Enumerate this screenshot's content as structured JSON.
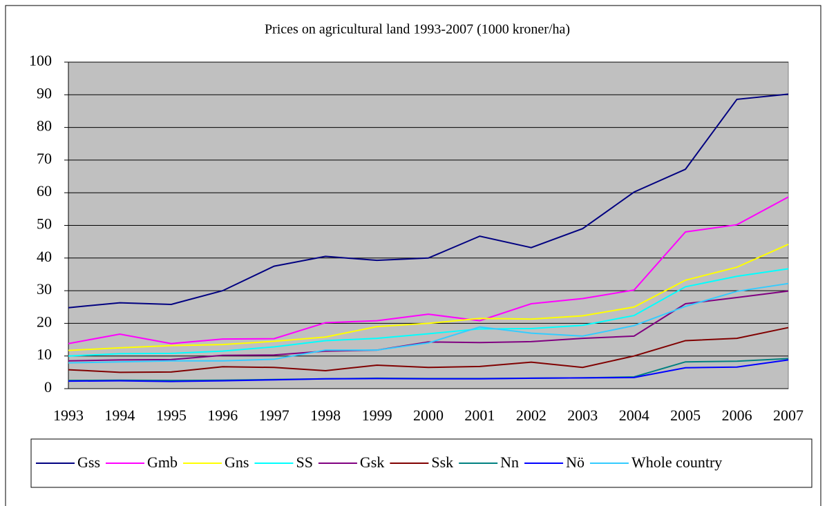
{
  "chart_data": {
    "type": "line",
    "title": "Prices on agricultural land 1993-2007 (1000 kroner/ha)",
    "categories": [
      "1993",
      "1994",
      "1995",
      "1996",
      "1997",
      "1998",
      "1999",
      "2000",
      "2001",
      "2002",
      "2003",
      "2004",
      "2005",
      "2006",
      "2007"
    ],
    "ylim": [
      0,
      100
    ],
    "yticks": [
      0,
      10,
      20,
      30,
      40,
      50,
      60,
      70,
      80,
      90,
      100
    ],
    "grid": true,
    "series": [
      {
        "name": "Gss",
        "color": "#000080",
        "values": [
          24.8,
          26.3,
          25.8,
          30,
          37.5,
          40.5,
          39.3,
          40,
          46.7,
          43.2,
          49,
          60.2,
          67.2,
          88.6,
          90.2
        ]
      },
      {
        "name": "Gmb",
        "color": "#ff00ff",
        "values": [
          13.8,
          16.7,
          13.8,
          15.2,
          15.3,
          20.2,
          20.8,
          22.8,
          20.8,
          26,
          27.6,
          30.2,
          48,
          50.2,
          58.7
        ]
      },
      {
        "name": "Gns",
        "color": "#ffff00",
        "values": [
          11.7,
          12.5,
          13.2,
          13.5,
          14.5,
          15.8,
          19,
          20,
          21.5,
          21.3,
          22.3,
          25,
          33.2,
          37.2,
          44.2
        ]
      },
      {
        "name": "SS",
        "color": "#00ffff",
        "values": [
          10,
          10.7,
          10.8,
          11.5,
          12.8,
          14.7,
          15.4,
          16.8,
          18.3,
          18.4,
          19.4,
          22.4,
          31.2,
          34.4,
          36.7
        ]
      },
      {
        "name": "Gsk",
        "color": "#800080",
        "values": [
          8.5,
          8.8,
          8.9,
          10.2,
          10.3,
          11.5,
          11.8,
          14.3,
          14.1,
          14.4,
          15.4,
          16.1,
          26,
          27.9,
          29.9
        ]
      },
      {
        "name": "Ssk",
        "color": "#800000",
        "values": [
          5.8,
          5,
          5.1,
          6.7,
          6.5,
          5.5,
          7.2,
          6.5,
          6.8,
          8.1,
          6.5,
          10,
          14.7,
          15.4,
          18.7
        ]
      },
      {
        "name": "Nn",
        "color": "#008080",
        "values": [
          2.5,
          2.6,
          2.5,
          2.6,
          2.8,
          3,
          3.2,
          3.1,
          3.1,
          3.2,
          3.3,
          3.6,
          8.2,
          8.4,
          9.2
        ]
      },
      {
        "name": "Nö",
        "color": "#0000ff",
        "values": [
          2.3,
          2.4,
          2.2,
          2.4,
          2.7,
          3,
          3.1,
          3,
          3,
          3.2,
          3.3,
          3.4,
          6.4,
          6.6,
          8.8
        ]
      },
      {
        "name": "Whole country",
        "color": "#33ccff",
        "values": [
          7.9,
          8.2,
          8.5,
          8.5,
          9,
          11.8,
          11.8,
          14,
          18.9,
          17,
          16.1,
          19.3,
          25.2,
          29.8,
          32.2
        ]
      }
    ]
  }
}
